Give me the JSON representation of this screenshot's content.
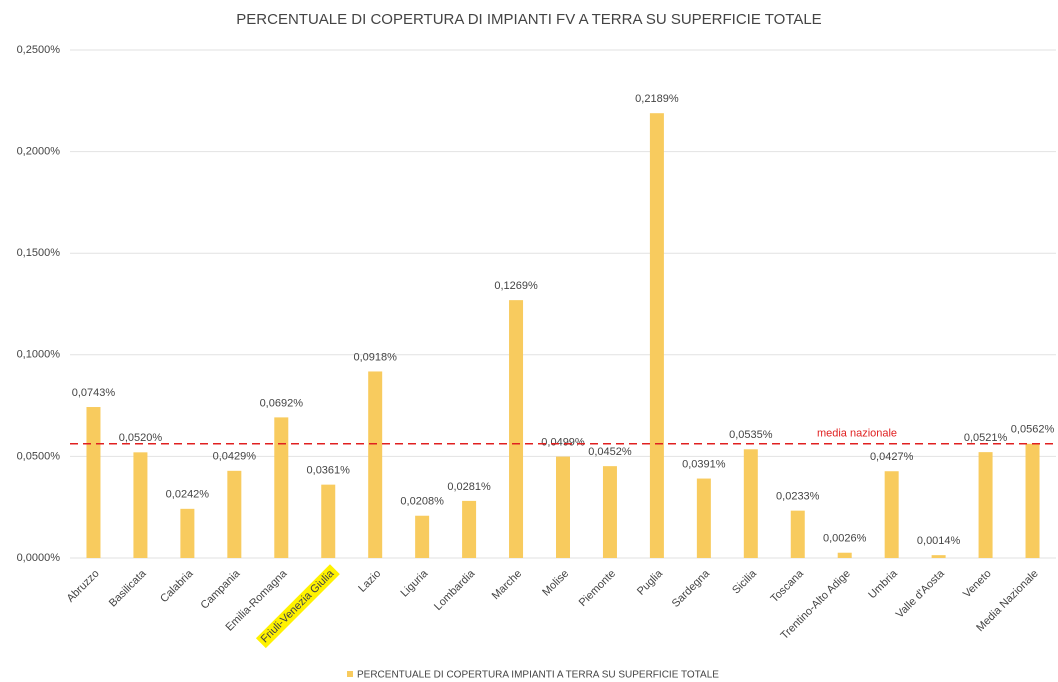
{
  "chart_data": {
    "type": "bar",
    "title": "PERCENTUALE DI COPERTURA DI IMPIANTI FV A TERRA SU SUPERFICIE TOTALE",
    "categories": [
      "Abruzzo",
      "Basilicata",
      "Calabria",
      "Campania",
      "Emilia-Romagna",
      "Friuli-Venezia Giulia",
      "Lazio",
      "Liguria",
      "Lombardia",
      "Marche",
      "Molise",
      "Piemonte",
      "Puglia",
      "Sardegna",
      "Sicilia",
      "Toscana",
      "Trentino-Alto Adige",
      "Umbria",
      "Valle d'Aosta",
      "Veneto",
      "Media Nazionale"
    ],
    "series": [
      {
        "name": "PERCENTUALE DI COPERTURA IMPIANTI A TERRA SU SUPERFICIE TOTALE",
        "color": "#f8cb5e",
        "values": [
          0.0743,
          0.052,
          0.0242,
          0.0429,
          0.0692,
          0.0361,
          0.0918,
          0.0208,
          0.0281,
          0.1269,
          0.0499,
          0.0452,
          0.2189,
          0.0391,
          0.0535,
          0.0233,
          0.0026,
          0.0427,
          0.0014,
          0.0521,
          0.0562
        ],
        "value_labels": [
          "0,0743%",
          "0,0520%",
          "0,0242%",
          "0,0429%",
          "0,0692%",
          "0,0361%",
          "0,0918%",
          "0,0208%",
          "0,0281%",
          "0,1269%",
          "0,0499%",
          "0,0452%",
          "0,2189%",
          "0,0391%",
          "0,0535%",
          "0,0233%",
          "0,0026%",
          "0,0427%",
          "0,0014%",
          "0,0521%",
          "0,0562%"
        ]
      }
    ],
    "ylim": [
      0,
      0.25
    ],
    "yticks": [
      {
        "value": 0,
        "label": "0,0000%"
      },
      {
        "value": 0.05,
        "label": "0,0500%"
      },
      {
        "value": 0.1,
        "label": "0,1000%"
      },
      {
        "value": 0.15,
        "label": "0,1500%"
      },
      {
        "value": 0.2,
        "label": "0,2000%"
      },
      {
        "value": 0.25,
        "label": "0,2500%"
      }
    ],
    "grid": true,
    "legend": "bottom",
    "highlight_index": 5,
    "highlight_color": "#fff200",
    "reference_line": {
      "label": "media nazionale",
      "value": 0.0562,
      "color": "#e02020"
    }
  }
}
